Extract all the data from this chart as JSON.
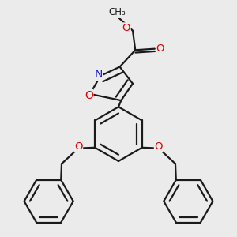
{
  "bg_color": "#ebebeb",
  "bond_color": "#1a1a1a",
  "bond_width": 1.6,
  "dbo": 0.012,
  "atom_colors": {
    "O": "#e00000",
    "N": "#2020cc",
    "C": "#1a1a1a"
  },
  "font_size": 8.5,
  "figsize": [
    3.0,
    3.0
  ],
  "dpi": 100
}
